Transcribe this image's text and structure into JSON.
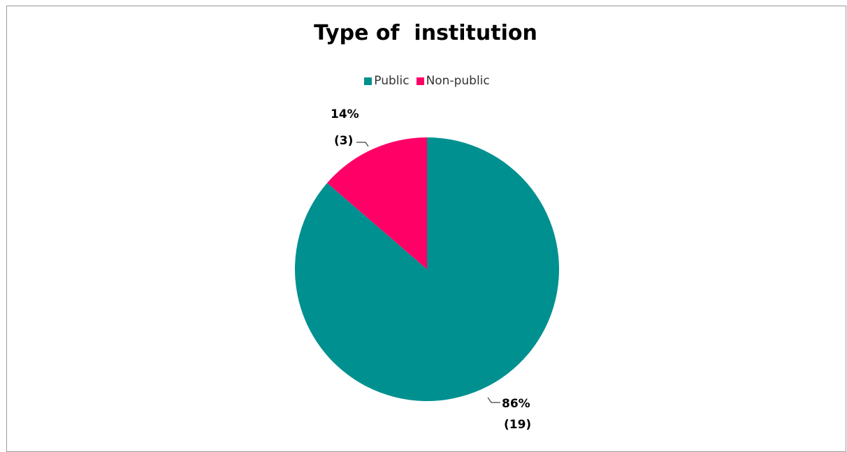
{
  "chart_data": {
    "type": "pie",
    "title": "Type of  institution",
    "categories": [
      "Public",
      "Non-public"
    ],
    "values": [
      19,
      3
    ],
    "percent_labels": [
      "86%",
      "14%"
    ],
    "count_labels": [
      "(19)",
      "(3)"
    ],
    "colors": [
      "#009090",
      "#ff0066"
    ],
    "legend_position": "top",
    "start_angle_deg": 0,
    "direction": "clockwise"
  }
}
